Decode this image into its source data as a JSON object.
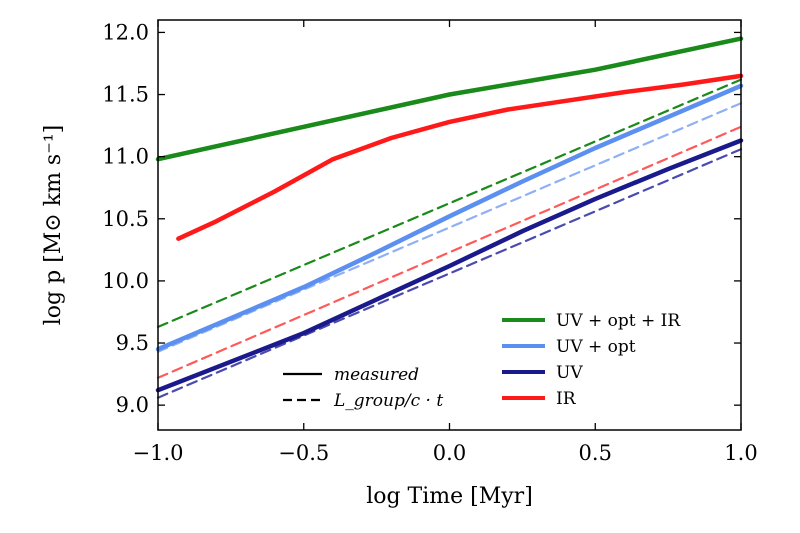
{
  "chart_data": {
    "type": "line",
    "title": "",
    "xlabel": "log Time [Myr]",
    "ylabel": "log p [M⊙ km s⁻¹]",
    "xlim": [
      -1.0,
      1.0
    ],
    "ylim": [
      8.8,
      12.1
    ],
    "xticks": [
      -1.0,
      -0.5,
      0.0,
      0.5,
      1.0
    ],
    "xtick_labels": [
      "−1.0",
      "−0.5",
      "0.0",
      "0.5",
      "1.0"
    ],
    "yticks": [
      9.0,
      9.5,
      10.0,
      10.5,
      11.0,
      11.5,
      12.0
    ],
    "ytick_labels": [
      "9.0",
      "9.5",
      "10.0",
      "10.5",
      "11.0",
      "11.5",
      "12.0"
    ],
    "grid": false,
    "legend_position": "lower-right",
    "series": [
      {
        "name": "UV + opt + IR",
        "color": "#1a8a1a",
        "style": "solid",
        "x": [
          -1.0,
          -0.5,
          0.0,
          0.5,
          1.0
        ],
        "y": [
          10.98,
          11.24,
          11.5,
          11.7,
          11.95
        ]
      },
      {
        "name": "UV + opt",
        "color": "#5b8ff0",
        "style": "solid",
        "x": [
          -1.0,
          -0.75,
          -0.5,
          -0.25,
          0.0,
          0.25,
          0.5,
          0.75,
          1.0
        ],
        "y": [
          9.45,
          9.7,
          9.95,
          10.23,
          10.52,
          10.8,
          11.07,
          11.32,
          11.57
        ]
      },
      {
        "name": "UV",
        "color": "#1a1a8c",
        "style": "solid",
        "x": [
          -1.0,
          -0.75,
          -0.5,
          -0.25,
          0.0,
          0.25,
          0.5,
          0.75,
          1.0
        ],
        "y": [
          9.12,
          9.35,
          9.58,
          9.85,
          10.12,
          10.4,
          10.66,
          10.9,
          11.13
        ]
      },
      {
        "name": "IR",
        "color": "#ff1a1a",
        "style": "solid",
        "x": [
          -0.93,
          -0.8,
          -0.6,
          -0.4,
          -0.2,
          0.0,
          0.2,
          0.4,
          0.6,
          0.8,
          1.0
        ],
        "y": [
          10.34,
          10.48,
          10.72,
          10.98,
          11.15,
          11.28,
          11.38,
          11.45,
          11.52,
          11.58,
          11.65
        ]
      },
      {
        "name": "",
        "color": "#1a8a1a",
        "style": "dashed",
        "x": [
          -1.0,
          1.0
        ],
        "y": [
          9.63,
          11.62
        ]
      },
      {
        "name": "",
        "color": "#8fb0f5",
        "style": "dashed",
        "x": [
          -1.0,
          1.0
        ],
        "y": [
          9.43,
          11.43
        ]
      },
      {
        "name": "",
        "color": "#ff5a5a",
        "style": "dashed",
        "x": [
          -1.0,
          1.0
        ],
        "y": [
          9.22,
          11.24
        ]
      },
      {
        "name": "",
        "color": "#4a4ab0",
        "style": "dashed",
        "x": [
          -1.0,
          1.0
        ],
        "y": [
          9.06,
          11.06
        ]
      }
    ],
    "legend": {
      "entries": [
        {
          "label": "UV + opt + IR",
          "color": "#1a8a1a"
        },
        {
          "label": "UV + opt",
          "color": "#5b8ff0"
        },
        {
          "label": "UV",
          "color": "#1a1a8c"
        },
        {
          "label": "IR",
          "color": "#ff1a1a"
        }
      ],
      "style_entries": [
        {
          "label": "measured",
          "style": "solid"
        },
        {
          "label": "L_group/c · t",
          "style": "dashed"
        }
      ]
    }
  }
}
